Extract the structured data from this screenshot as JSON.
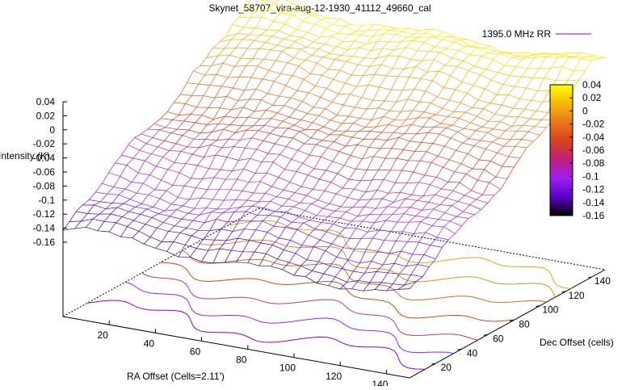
{
  "chart_data": {
    "type": "surface3d",
    "title": "Skynet_58707_vira-aug-12-1930_41112_49660_cal",
    "series": [
      {
        "name": "1395.0 MHz RR",
        "color": "#9400d3"
      }
    ],
    "xlabel": "RA Offset (Cells=2.11')",
    "ylabel": "Dec Offset (cells)",
    "zlabel": "Intensity (K)",
    "x_ticks": [
      "20",
      "40",
      "60",
      "80",
      "100",
      "120",
      "140"
    ],
    "y_ticks": [
      "20",
      "40",
      "60",
      "80",
      "100",
      "120",
      "140"
    ],
    "z_ticks": [
      "0.04",
      "0.02",
      "0",
      "-0.02",
      "-0.04",
      "-0.06",
      "-0.08",
      "-0.1",
      "-0.12",
      "-0.14",
      "-0.16"
    ],
    "zlim": [
      -0.16,
      0.04
    ],
    "colorbar": {
      "ticks": [
        "0.04",
        "0.02",
        "0",
        "-0.02",
        "-0.04",
        "-0.06",
        "-0.08",
        "-0.1",
        "-0.12",
        "-0.14",
        "-0.16"
      ],
      "range": [
        -0.16,
        0.04
      ],
      "palette": [
        "#000000",
        "#5a00c8",
        "#a020f0",
        "#c0207a",
        "#d8401c",
        "#e8781c",
        "#f4b80c",
        "#ffff00"
      ]
    },
    "surface": {
      "description_of_values": "intensity rises roughly linearly from about -0.145 at low Dec Offset to about 0.03 at high Dec Offset",
      "dec_offset": [
        0,
        20,
        40,
        60,
        80,
        100,
        120,
        140
      ],
      "intensity": [
        -0.145,
        -0.12,
        -0.095,
        -0.07,
        -0.045,
        -0.02,
        0.005,
        0.03
      ]
    },
    "contours": [
      {
        "color": "#9400d3"
      },
      {
        "color": "#a020f0"
      },
      {
        "color": "#b04080"
      },
      {
        "color": "#c05020"
      },
      {
        "color": "#d07020"
      },
      {
        "color": "#d89020"
      },
      {
        "color": "#e0a818"
      }
    ]
  }
}
